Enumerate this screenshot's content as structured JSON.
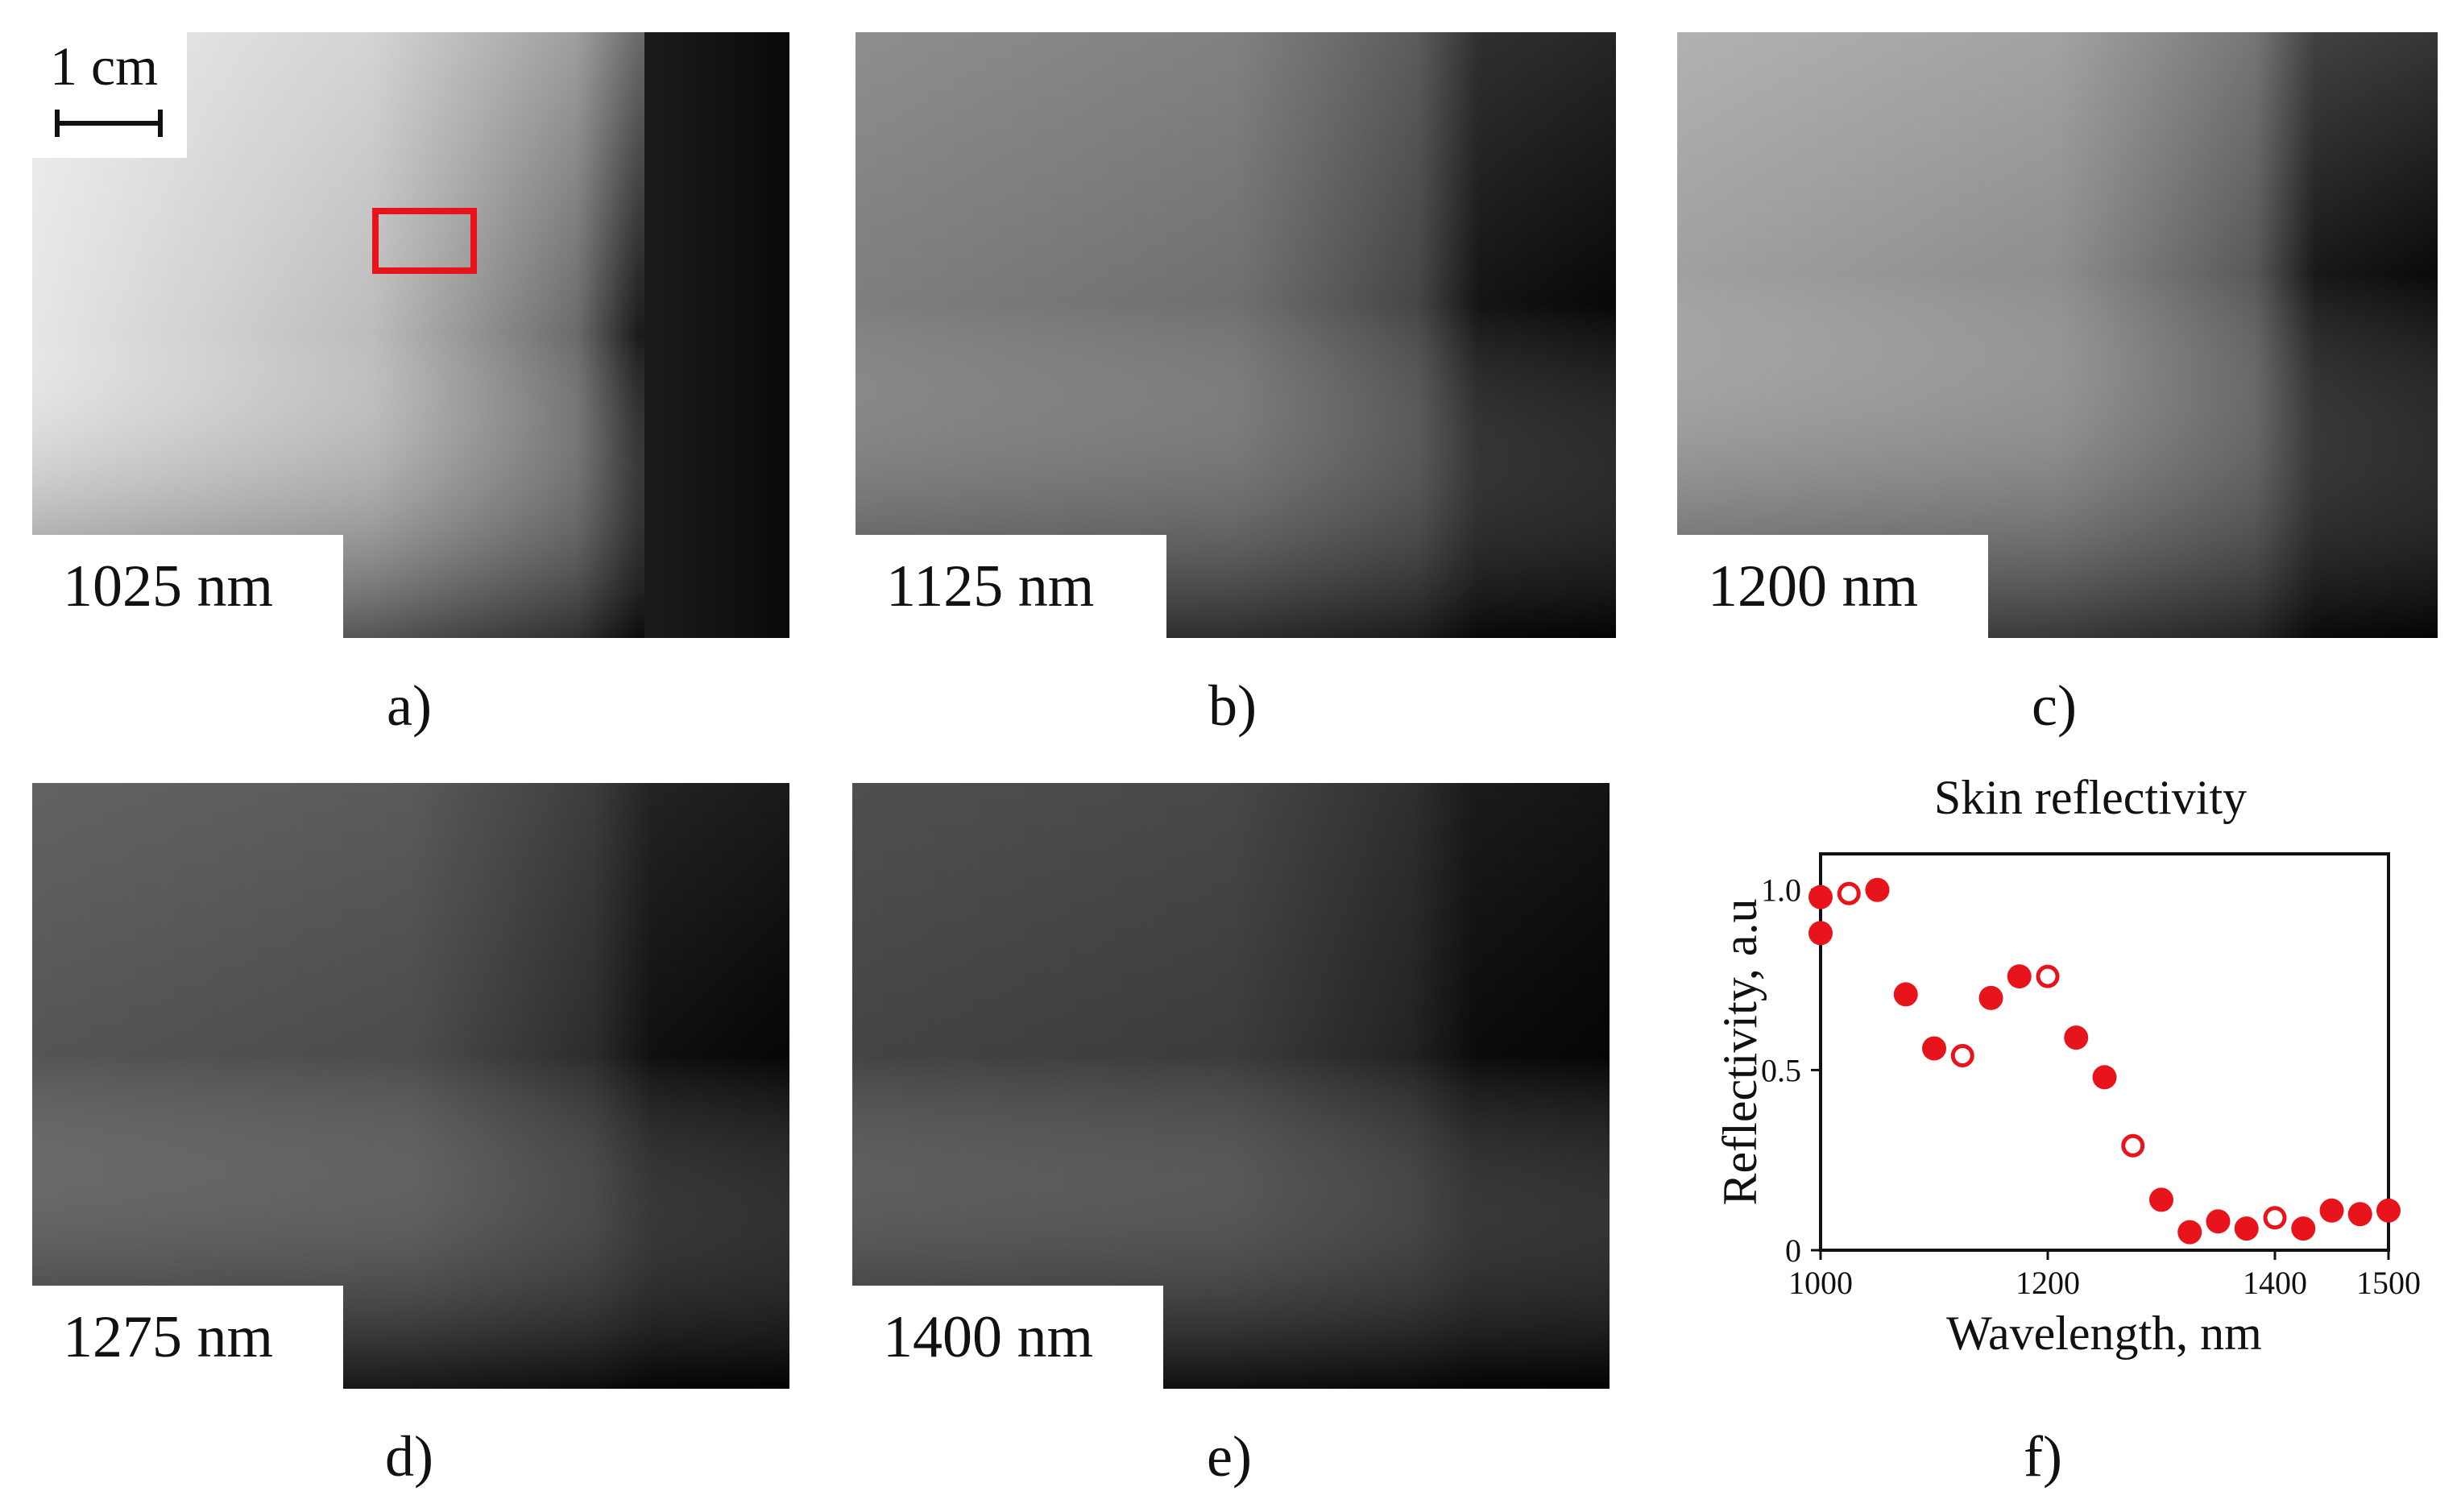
{
  "panels": [
    {
      "id": "a",
      "wavelength": "1025 nm",
      "label": "a)",
      "bright": 1.0
    },
    {
      "id": "b",
      "wavelength": "1125 nm",
      "label": "b)",
      "bright": 0.55
    },
    {
      "id": "c",
      "wavelength": "1200 nm",
      "label": "c)",
      "bright": 0.72
    },
    {
      "id": "d",
      "wavelength": "1275 nm",
      "label": "d)",
      "bright": 0.38
    },
    {
      "id": "e",
      "wavelength": "1400 nm",
      "label": "e)",
      "bright": 0.28
    }
  ],
  "scale_bar": {
    "label": "1 cm"
  },
  "roi_color": "#e8141c",
  "chart_label": "f)",
  "chart_data": {
    "type": "scatter",
    "title": "Skin reflectivity",
    "xlabel": "Wavelength, nm",
    "ylabel": "Reflectivity, a.u",
    "xlim": [
      1000,
      1500
    ],
    "ylim": [
      0,
      1.1
    ],
    "xticks": [
      1000,
      1200,
      1400,
      1500
    ],
    "xtick_labels": [
      "1000",
      "1200",
      "1400",
      "1500"
    ],
    "yticks": [
      0,
      0.5,
      1.0
    ],
    "ytick_labels": [
      "0",
      "0.5",
      "1.0"
    ],
    "grid": false,
    "color": "#e8141c",
    "series": [
      {
        "marker": "filled",
        "x": [
          1000,
          1000,
          1050,
          1075,
          1100,
          1150,
          1175,
          1225,
          1250,
          1300,
          1325,
          1350,
          1375,
          1425,
          1450,
          1475,
          1500
        ],
        "y": [
          0.88,
          0.98,
          1.0,
          0.71,
          0.56,
          0.7,
          0.76,
          0.59,
          0.48,
          0.14,
          0.05,
          0.08,
          0.06,
          0.06,
          0.11,
          0.1,
          0.11
        ]
      },
      {
        "marker": "open",
        "x": [
          1025,
          1125,
          1200,
          1275,
          1400
        ],
        "y": [
          0.99,
          0.54,
          0.76,
          0.29,
          0.09
        ]
      }
    ]
  }
}
